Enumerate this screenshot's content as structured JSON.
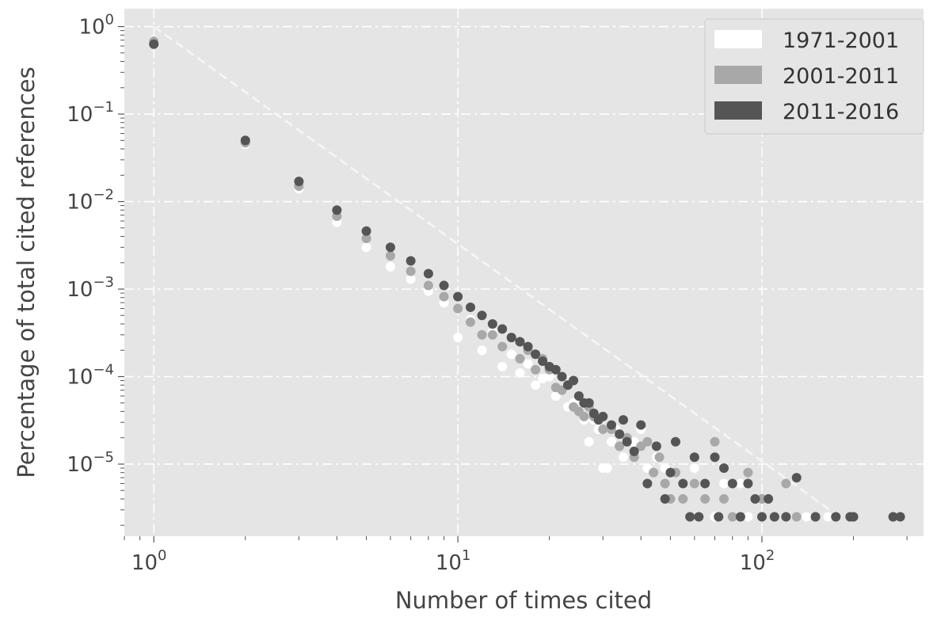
{
  "chart_data": {
    "type": "scatter",
    "x_scale": "log",
    "y_scale": "log",
    "xlim": [
      0.8,
      340
    ],
    "ylim": [
      1.5e-06,
      1.6
    ],
    "xlabel": "Number of times cited",
    "ylabel": "Percentage of total cited references",
    "grid": true,
    "legend_position": "top-right",
    "x_ticks": [
      {
        "value": 1,
        "base": "10",
        "exp": "0"
      },
      {
        "value": 10,
        "base": "10",
        "exp": "1"
      },
      {
        "value": 100,
        "base": "10",
        "exp": "2"
      }
    ],
    "y_ticks": [
      {
        "value": 1,
        "base": "10",
        "exp": "0"
      },
      {
        "value": 0.1,
        "base": "10",
        "exp": "−1"
      },
      {
        "value": 0.01,
        "base": "10",
        "exp": "−2"
      },
      {
        "value": 0.001,
        "base": "10",
        "exp": "−3"
      },
      {
        "value": 0.0001,
        "base": "10",
        "exp": "−4"
      },
      {
        "value": 1e-05,
        "base": "10",
        "exp": "−5"
      }
    ],
    "reference_lines": [
      {
        "style": "dashed",
        "color": "#f5f5f5",
        "points": [
          [
            1,
            1
          ],
          [
            180,
            2.5e-06
          ]
        ]
      },
      {
        "style": "dashed",
        "color": "#f5f5f5",
        "points": [
          [
            1,
            1
          ],
          [
            180,
            2.5e-06
          ]
        ]
      }
    ],
    "series": [
      {
        "name": "1971-2001",
        "color": "#ffffff",
        "points": [
          [
            1,
            0.7
          ],
          [
            2,
            0.045
          ],
          [
            3,
            0.014
          ],
          [
            4,
            0.0058
          ],
          [
            5,
            0.003
          ],
          [
            6,
            0.0018
          ],
          [
            7,
            0.0013
          ],
          [
            8,
            0.00095
          ],
          [
            9,
            0.0007
          ],
          [
            10,
            0.00028
          ],
          [
            11,
            0.00045
          ],
          [
            12,
            0.0002
          ],
          [
            13,
            0.00032
          ],
          [
            14,
            0.00013
          ],
          [
            15,
            0.00018
          ],
          [
            16,
            0.00011
          ],
          [
            17,
            0.00014
          ],
          [
            18,
            8e-05
          ],
          [
            19,
            9.5e-05
          ],
          [
            20,
            0.0001
          ],
          [
            21,
            6e-05
          ],
          [
            22,
            7e-05
          ],
          [
            23,
            4.5e-05
          ],
          [
            24,
            5e-05
          ],
          [
            25,
            4e-05
          ],
          [
            26,
            3.2e-05
          ],
          [
            27,
            1.8e-05
          ],
          [
            28,
            3.2e-05
          ],
          [
            29,
            2.5e-05
          ],
          [
            30,
            9e-06
          ],
          [
            31,
            9e-06
          ],
          [
            32,
            1.8e-05
          ],
          [
            33,
            2.5e-05
          ],
          [
            35,
            1.2e-05
          ],
          [
            38,
            1.8e-05
          ],
          [
            40,
            2.5e-05
          ],
          [
            42,
            9e-06
          ],
          [
            45,
            1.2e-05
          ],
          [
            48,
            9e-06
          ],
          [
            55,
            6e-06
          ],
          [
            60,
            9e-06
          ],
          [
            70,
            2.5e-06
          ],
          [
            75,
            6e-06
          ],
          [
            80,
            2.5e-06
          ],
          [
            85,
            6e-06
          ],
          [
            90,
            2.5e-06
          ],
          [
            100,
            2.5e-06
          ],
          [
            110,
            2.5e-06
          ],
          [
            120,
            2.5e-06
          ],
          [
            140,
            2.5e-06
          ],
          [
            150,
            2.5e-06
          ],
          [
            165,
            2.5e-06
          ]
        ]
      },
      {
        "name": "2001-2011",
        "color": "#a8a8a8",
        "points": [
          [
            1,
            0.68
          ],
          [
            2,
            0.047
          ],
          [
            3,
            0.015
          ],
          [
            4,
            0.0068
          ],
          [
            5,
            0.0038
          ],
          [
            6,
            0.0024
          ],
          [
            7,
            0.0016
          ],
          [
            8,
            0.0011
          ],
          [
            9,
            0.00082
          ],
          [
            10,
            0.0006
          ],
          [
            11,
            0.00042
          ],
          [
            12,
            0.0003
          ],
          [
            13,
            0.0003
          ],
          [
            14,
            0.00022
          ],
          [
            15,
            0.00028
          ],
          [
            16,
            0.00016
          ],
          [
            17,
            0.0002
          ],
          [
            18,
            0.00012
          ],
          [
            19,
            0.00016
          ],
          [
            20,
            0.00012
          ],
          [
            21,
            7.5e-05
          ],
          [
            22,
            7e-05
          ],
          [
            23,
            8e-05
          ],
          [
            24,
            4.5e-05
          ],
          [
            25,
            4e-05
          ],
          [
            26,
            3.5e-05
          ],
          [
            27,
            4.5e-05
          ],
          [
            28,
            3.5e-05
          ],
          [
            30,
            2.5e-05
          ],
          [
            32,
            2.5e-05
          ],
          [
            34,
            1.6e-05
          ],
          [
            36,
            2e-05
          ],
          [
            38,
            1.2e-05
          ],
          [
            40,
            1.6e-05
          ],
          [
            42,
            1.8e-05
          ],
          [
            44,
            8e-06
          ],
          [
            46,
            1.2e-05
          ],
          [
            48,
            6e-06
          ],
          [
            50,
            4e-06
          ],
          [
            52,
            8e-06
          ],
          [
            55,
            4e-06
          ],
          [
            60,
            6e-06
          ],
          [
            65,
            4e-06
          ],
          [
            70,
            1.8e-05
          ],
          [
            75,
            4e-06
          ],
          [
            80,
            2.5e-06
          ],
          [
            90,
            8e-06
          ],
          [
            100,
            4e-06
          ],
          [
            110,
            2.5e-06
          ],
          [
            120,
            6e-06
          ],
          [
            130,
            2.5e-06
          ],
          [
            150,
            2.5e-06
          ],
          [
            175,
            2.5e-06
          ]
        ]
      },
      {
        "name": "2011-2016",
        "color": "#555555",
        "points": [
          [
            1,
            0.63
          ],
          [
            2,
            0.05
          ],
          [
            3,
            0.017
          ],
          [
            4,
            0.008
          ],
          [
            5,
            0.0046
          ],
          [
            6,
            0.003
          ],
          [
            7,
            0.0021
          ],
          [
            8,
            0.0015
          ],
          [
            9,
            0.0011
          ],
          [
            10,
            0.00082
          ],
          [
            11,
            0.00062
          ],
          [
            12,
            0.0005
          ],
          [
            13,
            0.0004
          ],
          [
            14,
            0.00035
          ],
          [
            15,
            0.00028
          ],
          [
            16,
            0.00025
          ],
          [
            17,
            0.00022
          ],
          [
            18,
            0.00018
          ],
          [
            19,
            0.00015
          ],
          [
            20,
            0.00013
          ],
          [
            21,
            0.00012
          ],
          [
            22,
            0.0001
          ],
          [
            23,
            8e-05
          ],
          [
            24,
            9e-05
          ],
          [
            25,
            6e-05
          ],
          [
            26,
            5e-05
          ],
          [
            27,
            5e-05
          ],
          [
            28,
            3.8e-05
          ],
          [
            29,
            3.2e-05
          ],
          [
            30,
            3.5e-05
          ],
          [
            32,
            2.8e-05
          ],
          [
            34,
            2.2e-05
          ],
          [
            35,
            3.2e-05
          ],
          [
            36,
            1.8e-05
          ],
          [
            38,
            1.4e-05
          ],
          [
            40,
            2.8e-05
          ],
          [
            42,
            6e-06
          ],
          [
            45,
            1.6e-05
          ],
          [
            48,
            4e-06
          ],
          [
            50,
            8e-06
          ],
          [
            52,
            1.8e-05
          ],
          [
            55,
            6e-06
          ],
          [
            58,
            2.5e-06
          ],
          [
            60,
            1.2e-05
          ],
          [
            62,
            2.5e-06
          ],
          [
            65,
            6e-06
          ],
          [
            70,
            1.2e-05
          ],
          [
            72,
            2.5e-06
          ],
          [
            75,
            9e-06
          ],
          [
            80,
            6e-06
          ],
          [
            85,
            2.5e-06
          ],
          [
            90,
            6e-06
          ],
          [
            95,
            4e-06
          ],
          [
            100,
            2.5e-06
          ],
          [
            105,
            4e-06
          ],
          [
            110,
            2.5e-06
          ],
          [
            120,
            2.5e-06
          ],
          [
            130,
            7e-06
          ],
          [
            150,
            2.5e-06
          ],
          [
            175,
            2.5e-06
          ],
          [
            195,
            2.5e-06
          ],
          [
            200,
            2.5e-06
          ],
          [
            270,
            2.5e-06
          ],
          [
            285,
            2.5e-06
          ]
        ]
      }
    ]
  }
}
